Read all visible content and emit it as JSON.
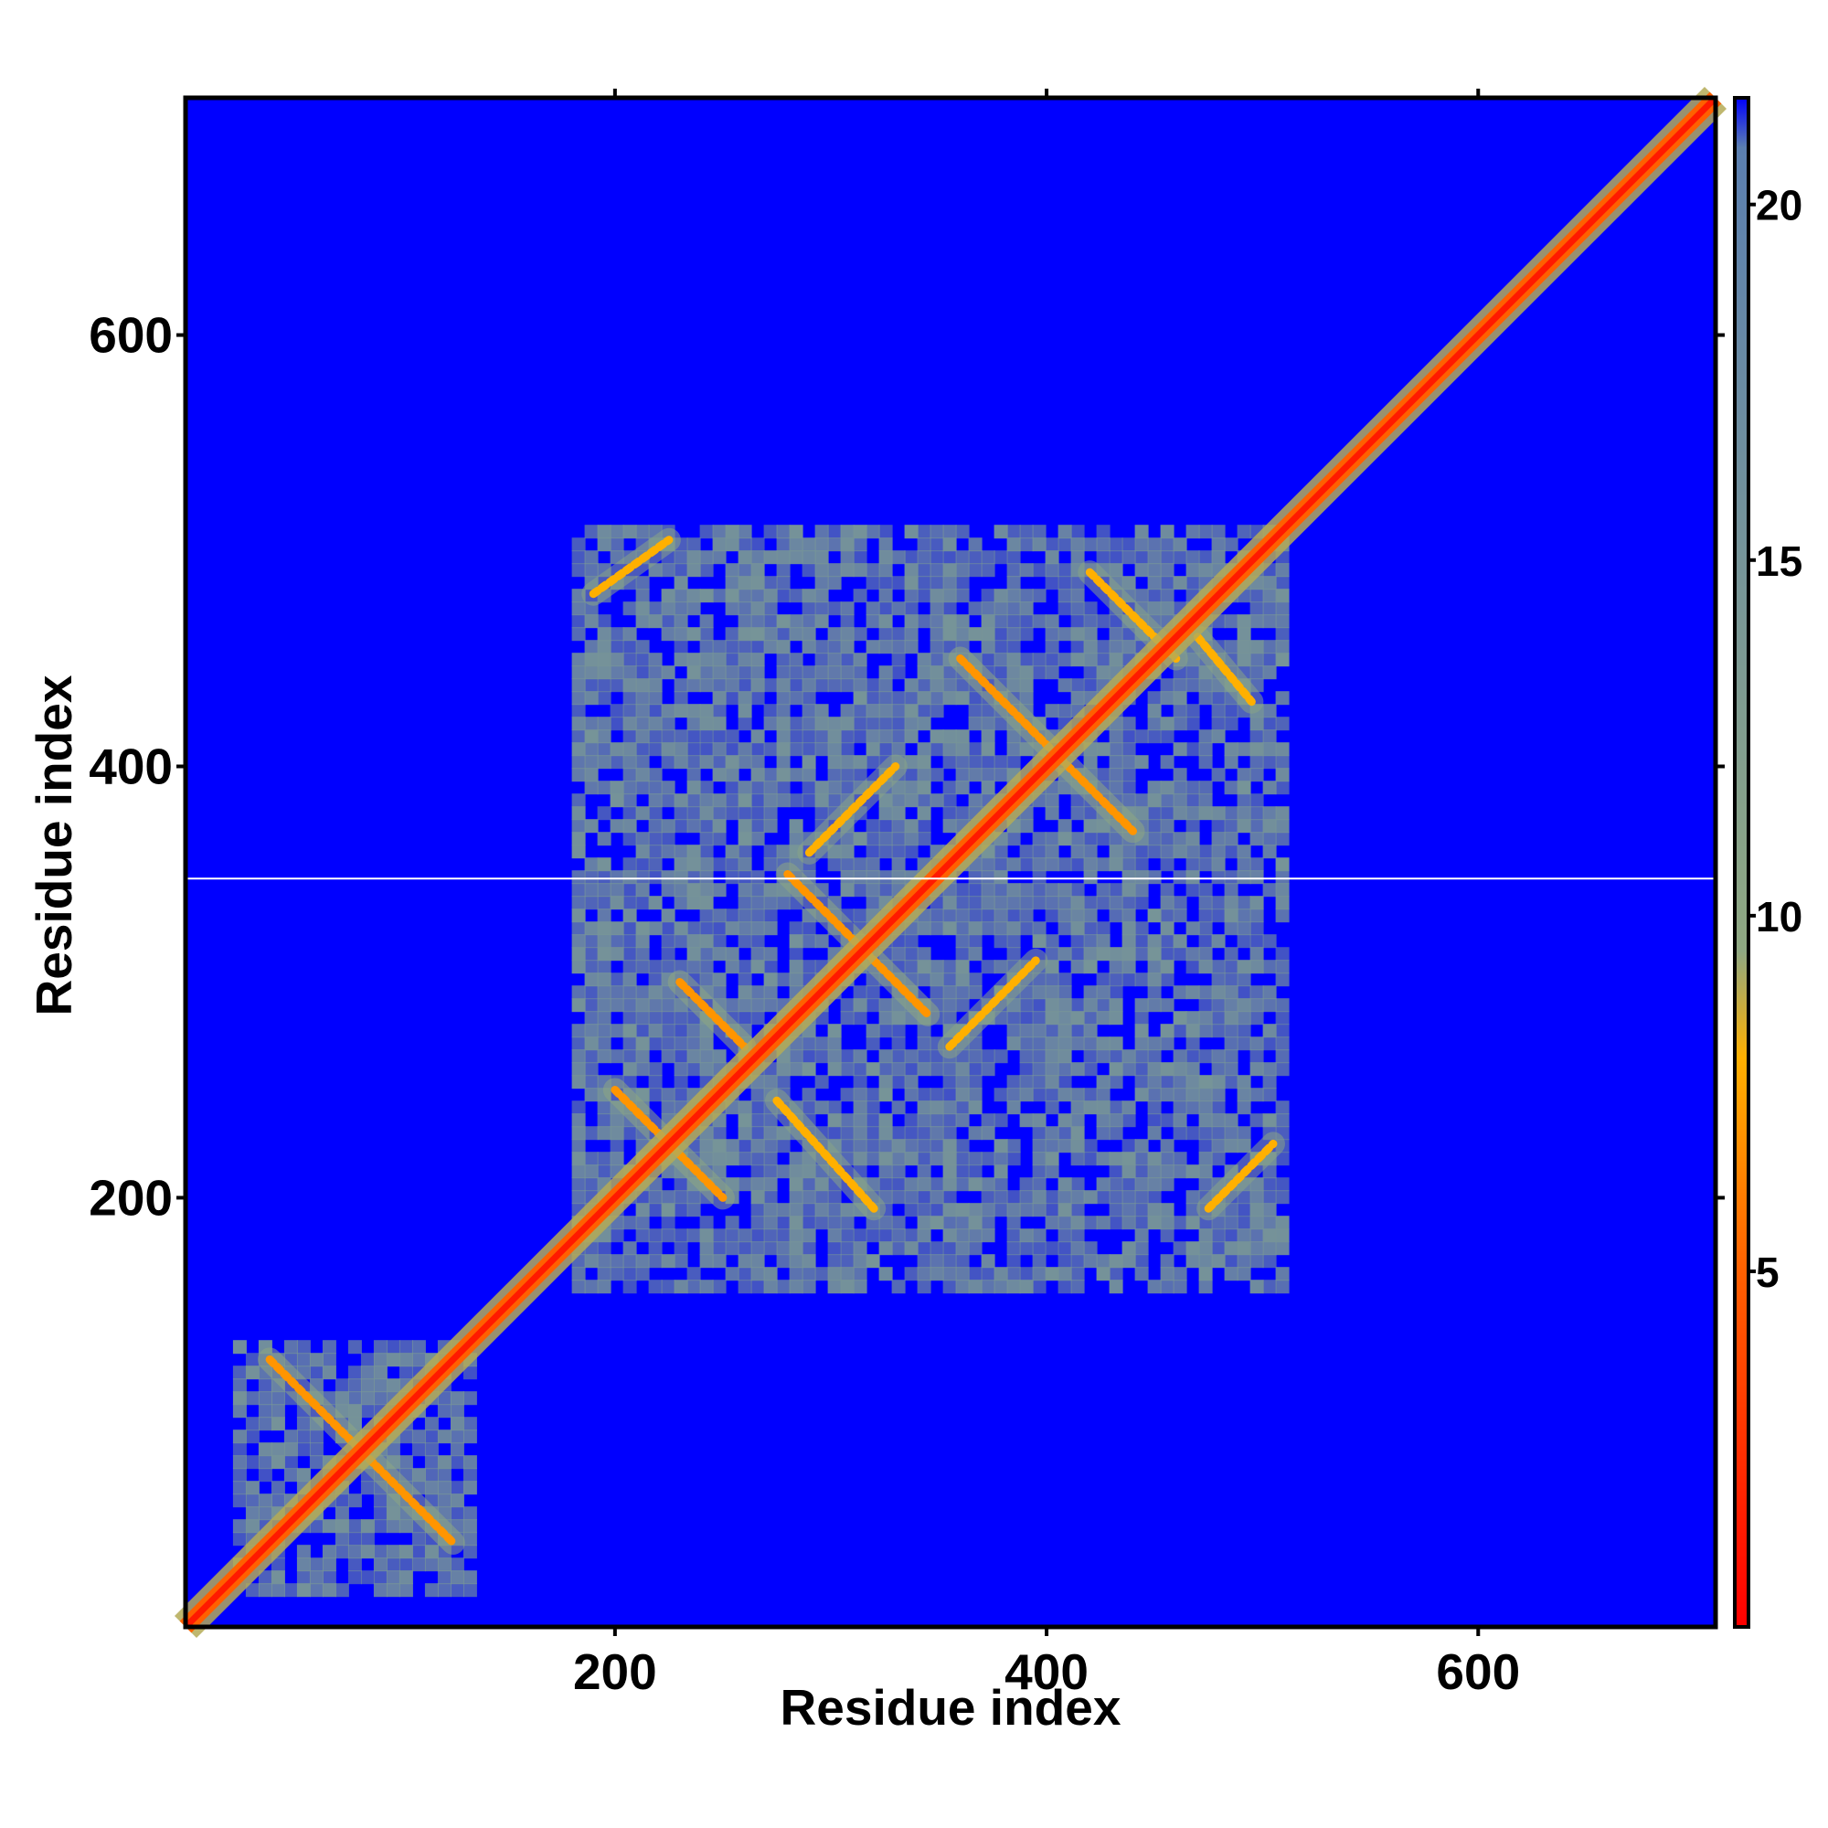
{
  "chart_data": {
    "type": "heatmap",
    "title": "",
    "xlabel": "Residue index",
    "ylabel": "Residue index",
    "xlim": [
      1,
      710
    ],
    "ylim": [
      1,
      710
    ],
    "x_ticks": [
      200,
      400,
      600
    ],
    "y_ticks": [
      200,
      400,
      600
    ],
    "x_tick_labels": [
      "200",
      "400",
      "600"
    ],
    "y_tick_labels": [
      "200",
      "400",
      "600"
    ],
    "colorbar": {
      "min": 0,
      "max": 21.5,
      "ticks": [
        5,
        10,
        15,
        20
      ],
      "tick_labels": [
        "5",
        "10",
        "15",
        "20"
      ],
      "stops": [
        {
          "value": 0,
          "color": "#ff0000"
        },
        {
          "value": 5,
          "color": "#ff6000"
        },
        {
          "value": 8,
          "color": "#ffb000"
        },
        {
          "value": 9.5,
          "color": "#8fa882"
        },
        {
          "value": 20.8,
          "color": "#5b7fb0"
        },
        {
          "value": 21.5,
          "color": "#0000ff"
        }
      ]
    },
    "background_value": 21.5,
    "background_color": "#0000ff",
    "contact_color": "#5b86b4",
    "diagonal_color": "#ff1a00",
    "missing_row_residue": 348,
    "regions": [
      {
        "name": "N-terminal domain block",
        "x": [
          23,
          133
        ],
        "y": [
          19,
          134
        ],
        "value": 15
      },
      {
        "name": "central domain block",
        "x": [
          180,
          512
        ],
        "y": [
          160,
          512
        ],
        "value": 15
      }
    ],
    "contact_lines": [
      {
        "x": [
          40,
          125
        ],
        "y": [
          125,
          40
        ],
        "value": 7
      },
      {
        "x": [
          200,
          250
        ],
        "y": [
          250,
          200
        ],
        "value": 7
      },
      {
        "x": [
          275,
          320
        ],
        "y": [
          245,
          195
        ],
        "value": 8
      },
      {
        "x": [
          230,
          260
        ],
        "y": [
          300,
          270
        ],
        "value": 7
      },
      {
        "x": [
          280,
          345
        ],
        "y": [
          350,
          285
        ],
        "value": 7
      },
      {
        "x": [
          290,
          330
        ],
        "y": [
          360,
          400
        ],
        "value": 8
      },
      {
        "x": [
          355,
          395
        ],
        "y": [
          270,
          310
        ],
        "value": 8
      },
      {
        "x": [
          360,
          440
        ],
        "y": [
          450,
          370
        ],
        "value": 7
      },
      {
        "x": [
          420,
          460
        ],
        "y": [
          490,
          450
        ],
        "value": 8
      },
      {
        "x": [
          470,
          495
        ],
        "y": [
          460,
          430
        ],
        "value": 8
      },
      {
        "x": [
          475,
          505
        ],
        "y": [
          195,
          225
        ],
        "value": 8
      },
      {
        "x": [
          190,
          225
        ],
        "y": [
          480,
          505
        ],
        "value": 8
      }
    ]
  }
}
